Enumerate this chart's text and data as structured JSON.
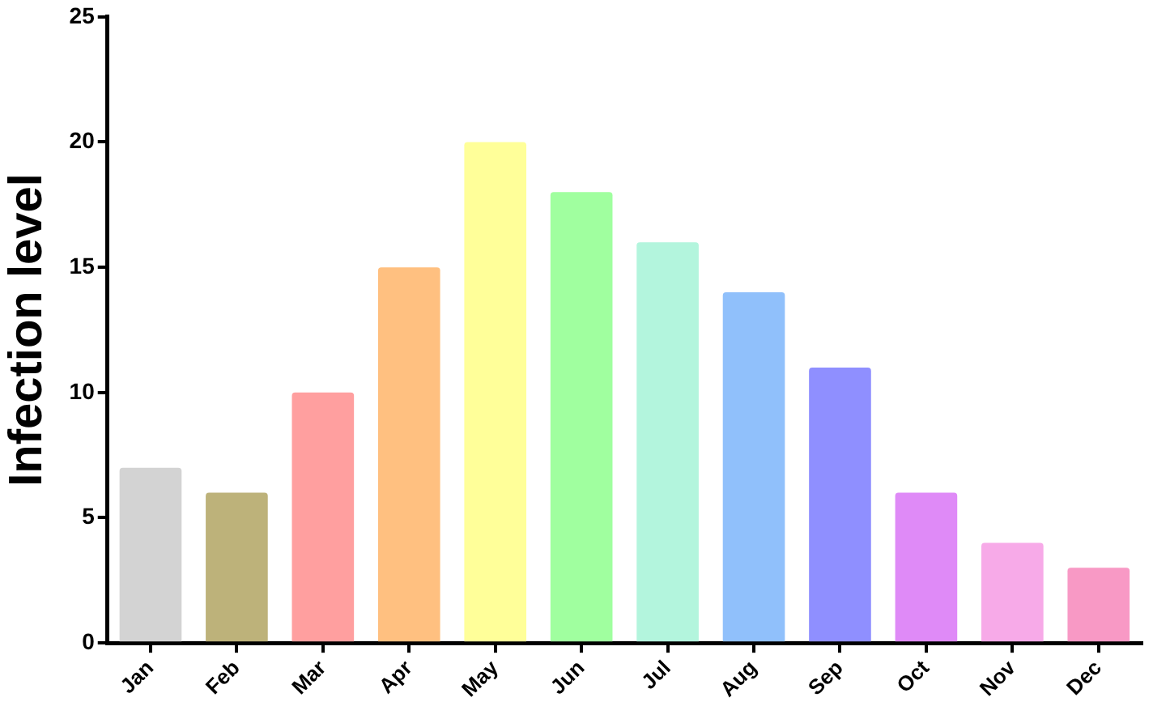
{
  "chart_data": {
    "type": "bar",
    "ylabel": "Infection level",
    "categories": [
      "Jan",
      "Feb",
      "Mar",
      "Apr",
      "May",
      "Jun",
      "Jul",
      "Aug",
      "Sep",
      "Oct",
      "Nov",
      "Dec"
    ],
    "values": [
      7,
      6,
      10,
      15,
      20,
      18,
      16,
      14,
      11,
      6,
      4,
      3
    ],
    "colors": [
      "#d3d3d3",
      "#bdb27a",
      "#ff9f9f",
      "#ffc080",
      "#ffff99",
      "#a0ff9f",
      "#b3f5dd",
      "#90c0fb",
      "#8f8fff",
      "#df8af7",
      "#f7aae8",
      "#f899c5"
    ],
    "ylim": [
      0,
      25
    ],
    "yticks": [
      0,
      5,
      10,
      15,
      20,
      25
    ]
  }
}
